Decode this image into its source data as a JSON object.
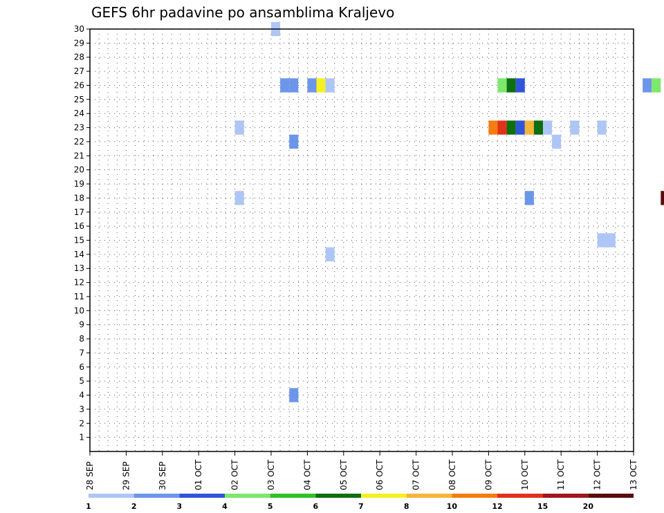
{
  "chart_data": {
    "type": "heatmap",
    "title": "GEFS 6hr padavine po ansamblima Kraljevo",
    "xlabel": "",
    "ylabel": "",
    "x_tick_labels": [
      "28 SEP",
      "29 SEP",
      "30 SEP",
      "01 OCT",
      "02 OCT",
      "03 OCT",
      "04 OCT",
      "05 OCT",
      "06 OCT",
      "07 OCT",
      "08 OCT",
      "09 OCT",
      "10 OCT",
      "11 OCT",
      "12 OCT",
      "13 OCT"
    ],
    "x_unit": "6-hour steps from 28 SEP 00Z",
    "y_tick_labels": [
      1,
      2,
      3,
      4,
      5,
      6,
      7,
      8,
      9,
      10,
      11,
      12,
      13,
      14,
      15,
      16,
      17,
      18,
      19,
      20,
      21,
      22,
      23,
      24,
      25,
      26,
      27,
      28,
      29,
      30
    ],
    "ylim": [
      0,
      30
    ],
    "grid": true,
    "color_scale": {
      "levels": [
        1,
        2,
        3,
        4,
        5,
        6,
        7,
        8,
        10,
        12,
        15,
        20
      ],
      "colors": [
        "#aec6f5",
        "#6c96ea",
        "#2f56d8",
        "#7de86a",
        "#2fc224",
        "#0e6e10",
        "#f6f021",
        "#f7b43b",
        "#f47c10",
        "#e0321a",
        "#a0161c",
        "#5a0c0c"
      ]
    },
    "cells": [
      {
        "day": 5.0,
        "member": 30,
        "level": 0
      },
      {
        "day": 5.25,
        "member": 26,
        "level": 1
      },
      {
        "day": 5.5,
        "member": 26,
        "level": 1
      },
      {
        "day": 6.0,
        "member": 26,
        "level": 1
      },
      {
        "day": 6.25,
        "member": 26,
        "level": 6
      },
      {
        "day": 6.5,
        "member": 26,
        "level": 0
      },
      {
        "day": 11.25,
        "member": 26,
        "level": 3
      },
      {
        "day": 11.5,
        "member": 26,
        "level": 5
      },
      {
        "day": 11.75,
        "member": 26,
        "level": 2
      },
      {
        "day": 15.25,
        "member": 26,
        "level": 1
      },
      {
        "day": 15.5,
        "member": 26,
        "level": 3
      },
      {
        "day": 4.0,
        "member": 23,
        "level": 0
      },
      {
        "day": 11.0,
        "member": 23,
        "level": 8
      },
      {
        "day": 11.25,
        "member": 23,
        "level": 9
      },
      {
        "day": 11.5,
        "member": 23,
        "level": 5
      },
      {
        "day": 11.75,
        "member": 23,
        "level": 2
      },
      {
        "day": 12.0,
        "member": 23,
        "level": 7
      },
      {
        "day": 12.25,
        "member": 23,
        "level": 5
      },
      {
        "day": 12.5,
        "member": 23,
        "level": 0
      },
      {
        "day": 13.25,
        "member": 23,
        "level": 0
      },
      {
        "day": 14.0,
        "member": 23,
        "level": 0
      },
      {
        "day": 5.5,
        "member": 22,
        "level": 1
      },
      {
        "day": 12.75,
        "member": 22,
        "level": 0
      },
      {
        "day": 4.0,
        "member": 18,
        "level": 0
      },
      {
        "day": 12.0,
        "member": 18,
        "level": 1
      },
      {
        "day": 15.75,
        "member": 18,
        "level": 11
      },
      {
        "day": 14.0,
        "member": 15,
        "level": 0
      },
      {
        "day": 14.25,
        "member": 15,
        "level": 0
      },
      {
        "day": 6.5,
        "member": 14,
        "level": 0
      },
      {
        "day": 5.5,
        "member": 4,
        "level": 1
      }
    ]
  }
}
